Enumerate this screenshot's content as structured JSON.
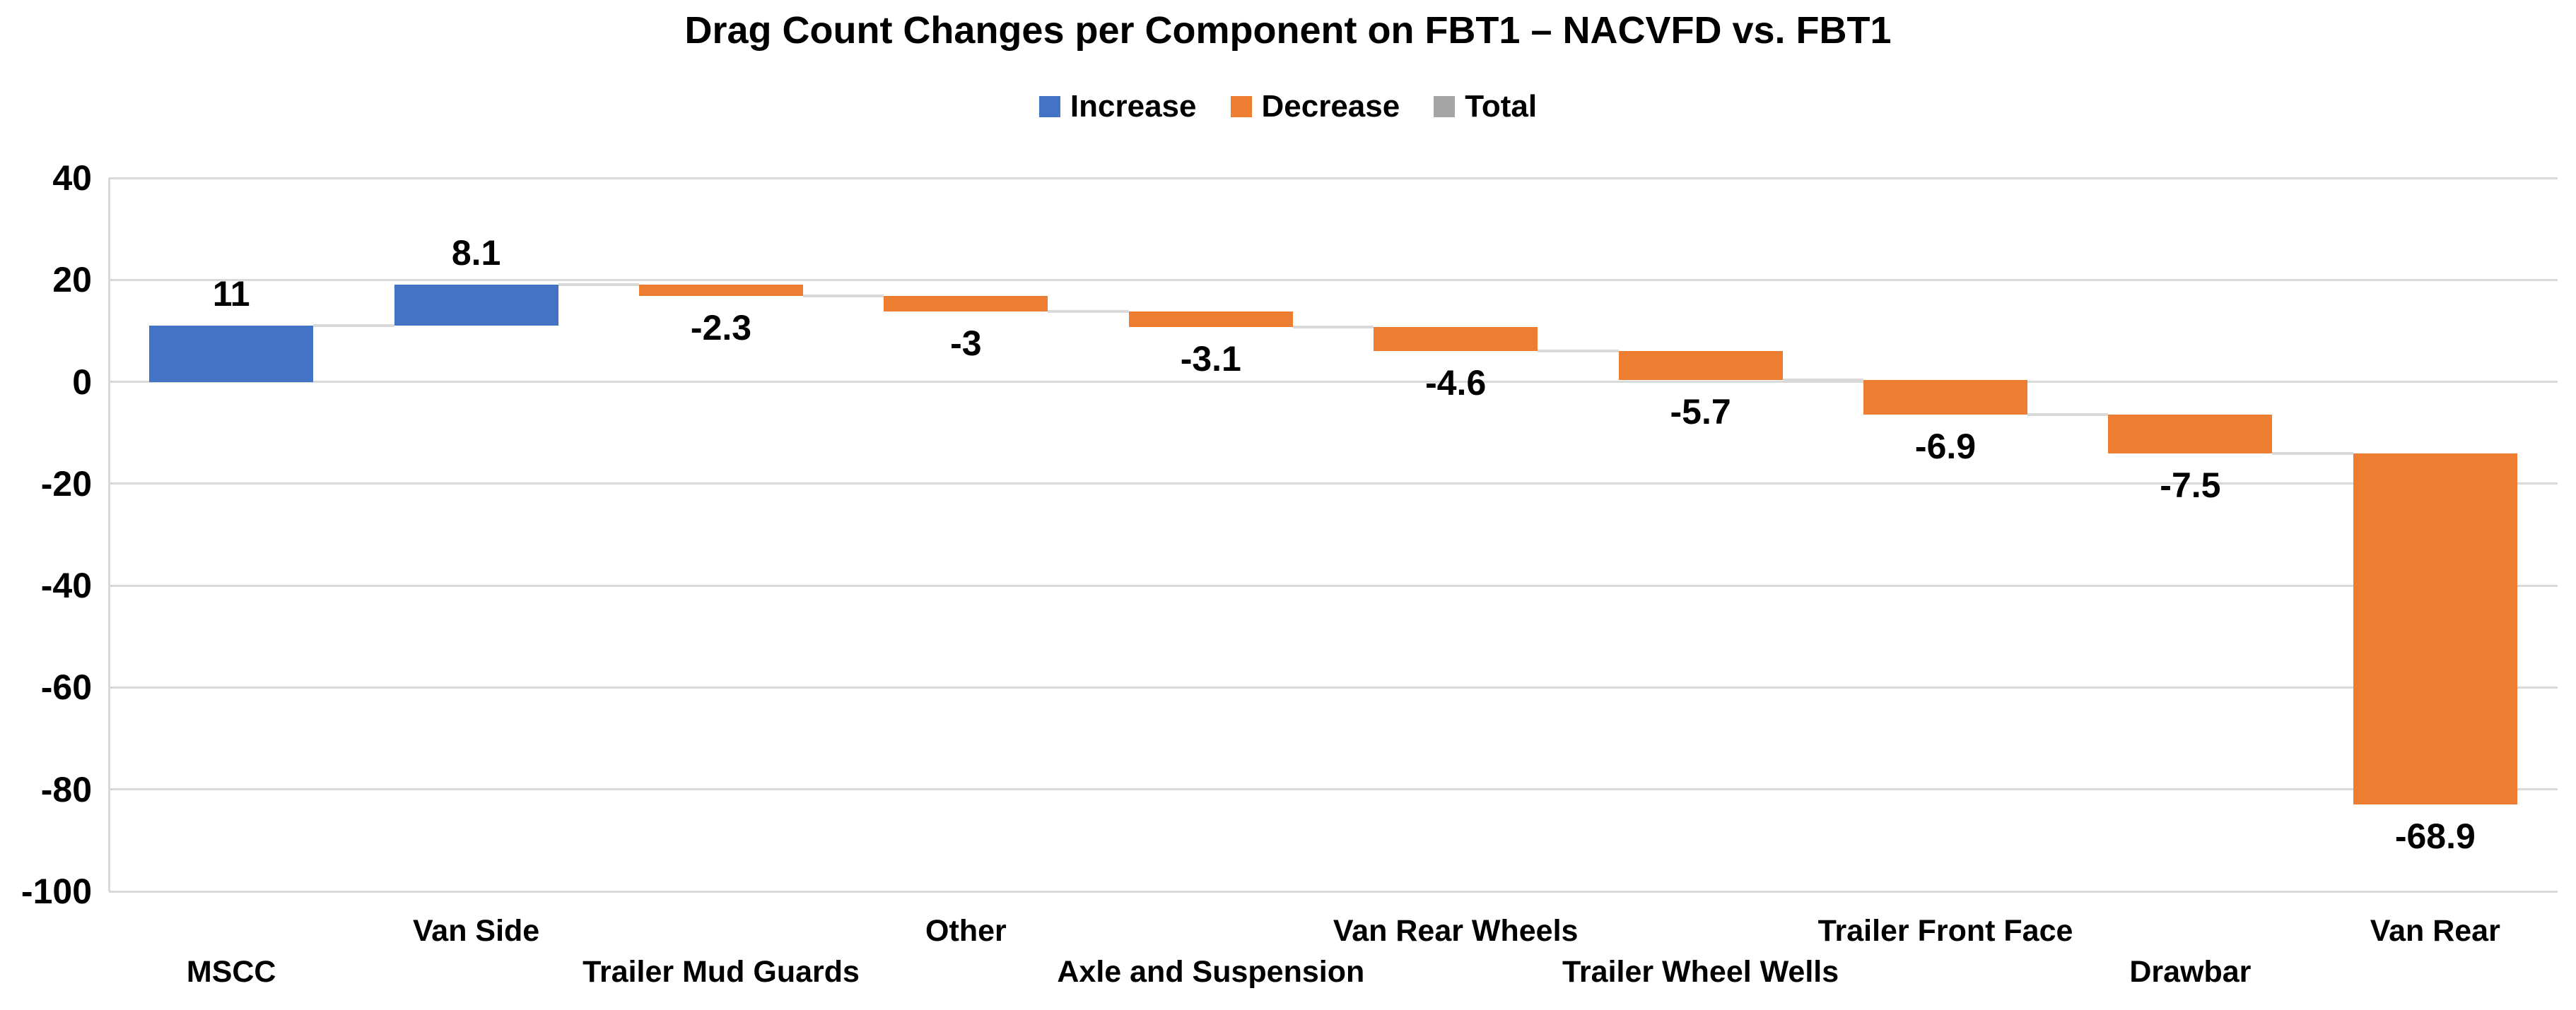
{
  "chart_data": {
    "type": "bar",
    "subtype": "waterfall",
    "title": "Drag Count Changes per Component on FBT1 – NACVFD vs. FBT1",
    "legend": [
      {
        "name": "increase",
        "label": "Increase",
        "color": "#4472C4"
      },
      {
        "name": "decrease",
        "label": "Decrease",
        "color": "#ED7D31"
      },
      {
        "name": "total",
        "label": "Total",
        "color": "#A5A5A5"
      }
    ],
    "legend_position": "top-center",
    "categories": [
      "MSCC",
      "Van Side",
      "Trailer Mud Guards",
      "Other",
      "Axle and Suspension",
      "Van Rear Wheels",
      "Trailer Wheel Wells",
      "Trailer Front Face",
      "Drawbar",
      "Van Rear"
    ],
    "values": [
      11,
      8.1,
      -2.3,
      -3,
      -3.1,
      -4.6,
      -5.7,
      -6.9,
      -7.5,
      -68.9
    ],
    "value_labels": [
      "11",
      "8.1",
      "-2.3",
      "-3",
      "-3.1",
      "-4.6",
      "-5.7",
      "-6.9",
      "-7.5",
      "-68.9"
    ],
    "cumulative_end": [
      11,
      19.1,
      16.8,
      13.8,
      10.7,
      6.1,
      0.4,
      -6.5,
      -14,
      -82.9
    ],
    "xlabel": "",
    "ylabel": "",
    "ylim": [
      -100,
      40
    ],
    "y_ticks": [
      "40",
      "20",
      "0",
      "-20",
      "-40",
      "-60",
      "-80",
      "-100"
    ],
    "y_tick_values": [
      40,
      20,
      0,
      -20,
      -40,
      -60,
      -80,
      -100
    ],
    "grid": "horizontal",
    "colors": {
      "increase": "#4472C4",
      "decrease": "#ED7D31",
      "total": "#A5A5A5",
      "gridline": "#D9D9D9",
      "connector": "#D9D9D9",
      "axis_line": "#D9D9D9",
      "text": "#000000",
      "background": "#FFFFFF"
    }
  }
}
